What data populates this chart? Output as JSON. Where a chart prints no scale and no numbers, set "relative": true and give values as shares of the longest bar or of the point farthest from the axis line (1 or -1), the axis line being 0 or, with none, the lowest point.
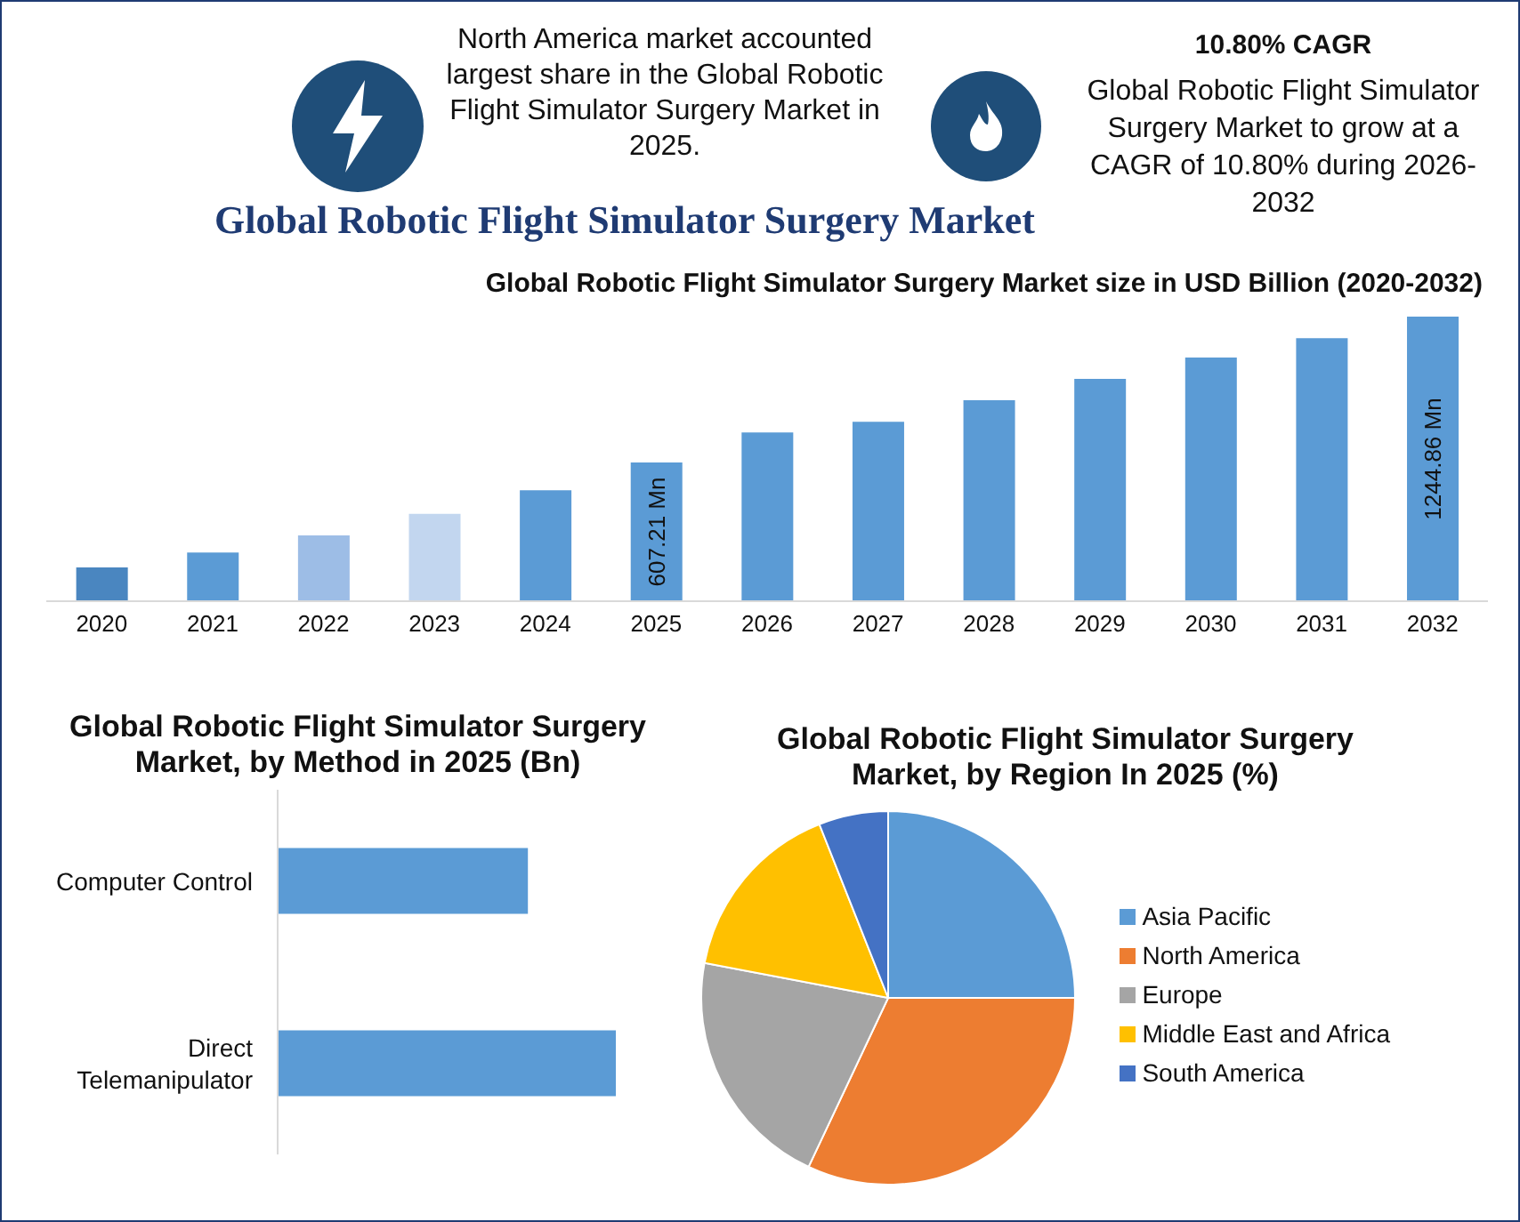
{
  "chart_data": [
    {
      "type": "other",
      "title": "Global Robotic Flight Simulator Surgery Market",
      "annotations": [
        "North America market accounted largest share in the Global Robotic Flight Simulator Surgery Market in 2025.",
        "10.80% CAGR",
        "Global Robotic Flight Simulator Surgery Market to grow at a CAGR of 10.80% during 2026-2032"
      ]
    },
    {
      "type": "bar",
      "title": "Global Robotic Flight Simulator Surgery Market size in USD Billion (2020-2032)",
      "categories": [
        "2020",
        "2021",
        "2022",
        "2023",
        "2024",
        "2025",
        "2026",
        "2027",
        "2028",
        "2029",
        "2030",
        "2031",
        "2032"
      ],
      "values": [
        148,
        213,
        288,
        382,
        485,
        607.21,
        738,
        785,
        879,
        973,
        1066,
        1151,
        1244.86
      ],
      "colors": [
        "#4a86c0",
        "#5b9bd5",
        "#9dbde6",
        "#c2d6ef",
        "#5b9bd5",
        "#5b9bd5",
        "#5b9bd5",
        "#5b9bd5",
        "#5b9bd5",
        "#5b9bd5",
        "#5b9bd5",
        "#5b9bd5",
        "#5b9bd5"
      ],
      "value_labels": [
        null,
        null,
        null,
        null,
        null,
        "607.21 Mn",
        null,
        null,
        null,
        null,
        null,
        null,
        "1244.86 Mn"
      ],
      "tick_labels": "x"
    },
    {
      "type": "bar",
      "orientation": "horizontal",
      "relative": true,
      "title": "Global Robotic Flight Simulator Surgery Market, by Method in 2025 (Bn)",
      "categories": [
        "Computer Control",
        "Direct Telemanipulator"
      ],
      "values": [
        0.74,
        1
      ],
      "color": "#5b9bd5",
      "tick_labels": "y"
    },
    {
      "type": "pie",
      "title": "Global Robotic Flight Simulator Surgery Market, by Region In 2025 (%)",
      "categories": [
        "Asia Pacific",
        "North America",
        "Europe",
        "Middle East and Africa",
        "South America"
      ],
      "values": [
        25,
        32,
        21,
        16,
        6
      ],
      "colors": [
        "#5b9bd5",
        "#ed7d31",
        "#a5a5a5",
        "#ffc000",
        "#4472c4"
      ],
      "legend": "right"
    }
  ]
}
